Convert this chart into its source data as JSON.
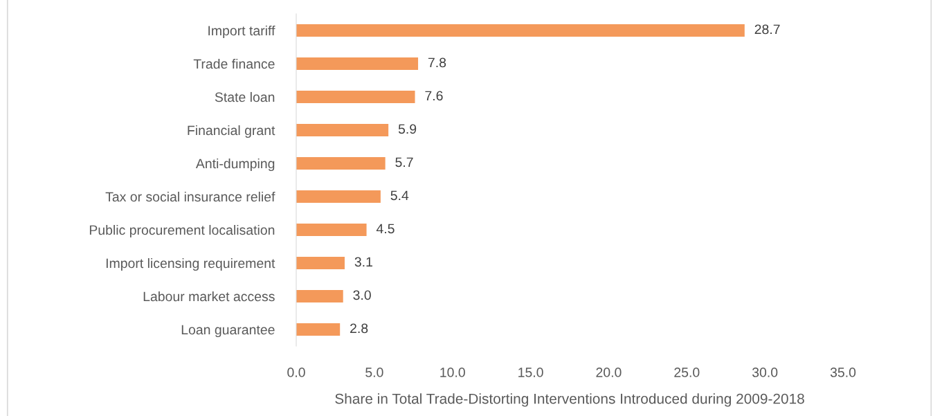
{
  "chart_data": {
    "type": "bar",
    "orientation": "horizontal",
    "xlabel": "Share in Total Trade-Distorting Interventions Introduced during 2009-2018",
    "categories": [
      "Import tariff",
      "Trade finance",
      "State loan",
      "Financial grant",
      "Anti-dumping",
      "Tax or social insurance relief",
      "Public procurement localisation",
      "Import licensing requirement",
      "Labour market access",
      "Loan guarantee"
    ],
    "values": [
      28.7,
      7.8,
      7.6,
      5.9,
      5.7,
      5.4,
      4.5,
      3.1,
      3.0,
      2.8
    ],
    "color": "#f4995a",
    "xlim": [
      0,
      35
    ],
    "xticks": [
      {
        "value": 0,
        "label": "0.0"
      },
      {
        "value": 5,
        "label": "5.0"
      },
      {
        "value": 10,
        "label": "10.0"
      },
      {
        "value": 15,
        "label": "15.0"
      },
      {
        "value": 20,
        "label": "20.0"
      },
      {
        "value": 25,
        "label": "25.0"
      },
      {
        "value": 30,
        "label": "30.0"
      },
      {
        "value": 35,
        "label": "35.0"
      }
    ],
    "value_labels": [
      "28.7",
      "7.8",
      "7.6",
      "5.9",
      "5.7",
      "5.4",
      "4.5",
      "3.1",
      "3.0",
      "2.8"
    ],
    "grid": false,
    "legend": false
  }
}
